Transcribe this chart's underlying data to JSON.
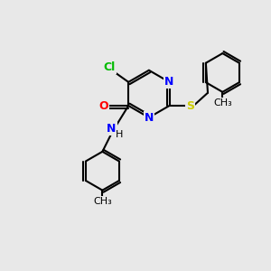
{
  "bg_color": "#e8e8e8",
  "bond_color": "#000000",
  "atom_colors": {
    "N": "#0000ff",
    "O": "#ff0000",
    "S": "#cccc00",
    "Cl": "#00bb00",
    "H": "#000000",
    "C": "#000000"
  },
  "font_size": 9,
  "figsize": [
    3.0,
    3.0
  ],
  "dpi": 100
}
